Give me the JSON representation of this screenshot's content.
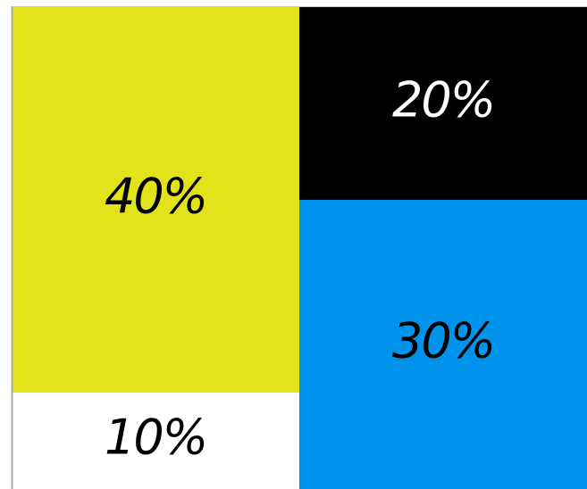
{
  "chart_data": {
    "type": "treemap",
    "title": "",
    "segments": [
      {
        "label": "40%",
        "value": 40,
        "color": "#e2e31a",
        "text_color": "#000000"
      },
      {
        "label": "20%",
        "value": 20,
        "color": "#000000",
        "text_color": "#ffffff"
      },
      {
        "label": "30%",
        "value": 30,
        "color": "#0093eb",
        "text_color": "#000000"
      },
      {
        "label": "10%",
        "value": 10,
        "color": "#ffffff",
        "text_color": "#000000"
      }
    ]
  }
}
